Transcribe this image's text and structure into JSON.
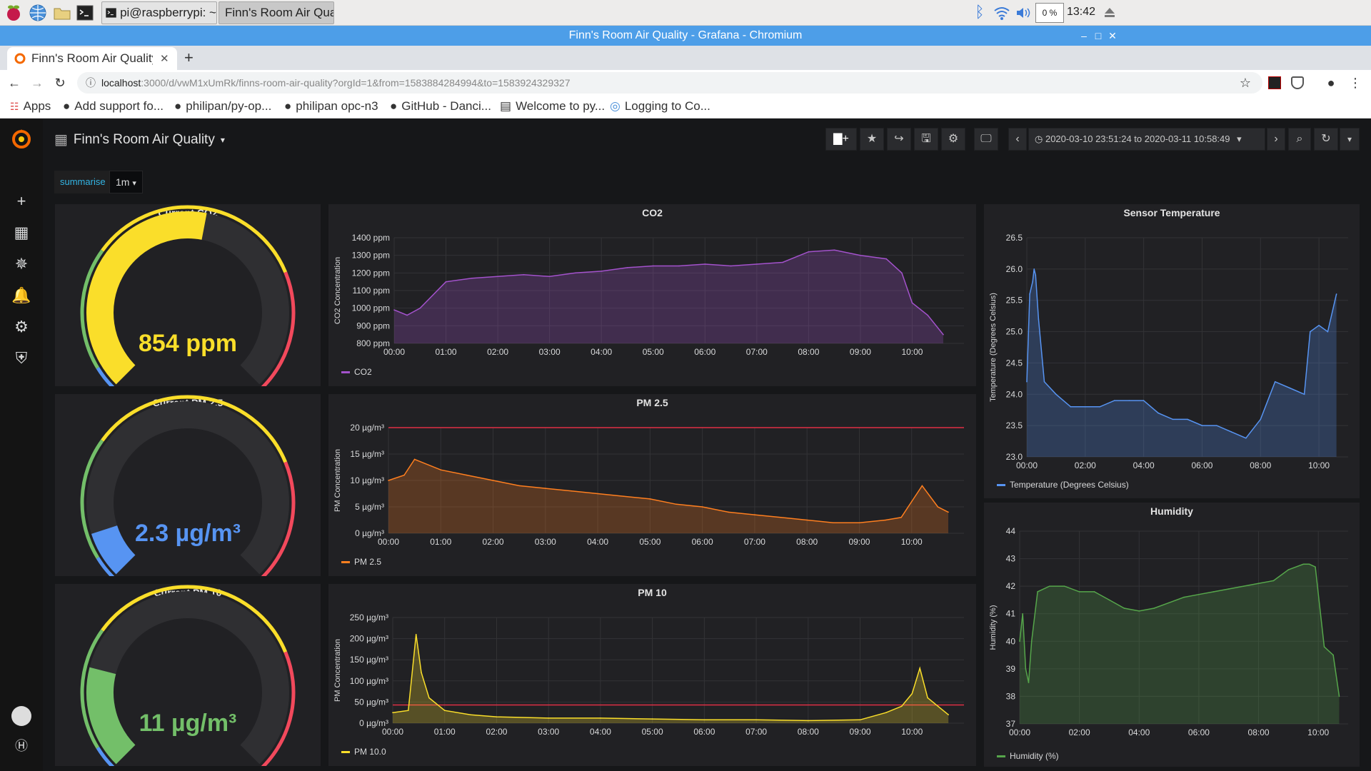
{
  "taskbar": {
    "windows": [
      {
        "label": "pi@raspberrypi: ~"
      },
      {
        "label": "Finn's Room Air Quali..."
      }
    ],
    "cpu": "0 %",
    "clock": "13:42"
  },
  "browser": {
    "window_title": "Finn's Room Air Quality - Grafana - Chromium",
    "tab_title": "Finn's Room Air Quality ·",
    "url_host": "localhost",
    "url_rest": ":3000/d/vwM1xUmRk/finns-room-air-quality?orgId=1&from=1583884284994&to=1583924329327",
    "bookmarks": [
      "Apps",
      "Add support fo...",
      "philipan/py-op...",
      "philipan opc-n3",
      "GitHub - Danci...",
      "Welcome to py...",
      "Logging to Co..."
    ]
  },
  "dashboard": {
    "title": "Finn's Room Air Quality",
    "time_range": "2020-03-10 23:51:24 to 2020-03-11 10:58:49",
    "variable_label": "summarise",
    "variable_value": "1m"
  },
  "gauges": [
    {
      "title": "Current CO2",
      "value_text": "854 ppm",
      "fraction": 0.54,
      "color": "#fade2a"
    },
    {
      "title": "Current PM 2.5",
      "value_text": "2.3 µg/m³",
      "fraction": 0.1,
      "color": "#5794f2"
    },
    {
      "title": "Current PM 10",
      "value_text": "11 µg/m³",
      "fraction": 0.22,
      "color": "#73bf69"
    }
  ],
  "charts": {
    "co2": {
      "title": "CO2",
      "ylabel": "CO2 Concentration",
      "legend": "CO2",
      "color": "#a352cc",
      "yticks": [
        "1400 ppm",
        "1300 ppm",
        "1200 ppm",
        "1100 ppm",
        "1000 ppm",
        "900 ppm",
        "800 ppm"
      ],
      "xticks": [
        "00:00",
        "01:00",
        "02:00",
        "03:00",
        "04:00",
        "05:00",
        "06:00",
        "07:00",
        "08:00",
        "09:00",
        "10:00"
      ]
    },
    "pm25": {
      "title": "PM 2.5",
      "ylabel": "PM Concentration",
      "legend": "PM 2.5",
      "color": "#ff7f1f",
      "yticks": [
        "20 µg/m³",
        "15 µg/m³",
        "10 µg/m³",
        "5 µg/m³",
        "0 µg/m³"
      ],
      "xticks": [
        "00:00",
        "01:00",
        "02:00",
        "03:00",
        "04:00",
        "05:00",
        "06:00",
        "07:00",
        "08:00",
        "09:00",
        "10:00"
      ]
    },
    "pm10": {
      "title": "PM 10",
      "ylabel": "PM Concentration",
      "legend": "PM 10.0",
      "color": "#fade2a",
      "yticks": [
        "250 µg/m³",
        "200 µg/m³",
        "150 µg/m³",
        "100 µg/m³",
        "50 µg/m³",
        "0 µg/m³"
      ],
      "xticks": [
        "00:00",
        "01:00",
        "02:00",
        "03:00",
        "04:00",
        "05:00",
        "06:00",
        "07:00",
        "08:00",
        "09:00",
        "10:00"
      ]
    },
    "temp": {
      "title": "Sensor Temperature",
      "ylabel": "Temperature (Degrees Celsius)",
      "legend": "Temperature (Degrees Celsius)",
      "color": "#5794f2",
      "yticks": [
        "26.5",
        "26.0",
        "25.5",
        "25.0",
        "24.5",
        "24.0",
        "23.5",
        "23.0"
      ],
      "xticks": [
        "00:00",
        "02:00",
        "04:00",
        "06:00",
        "08:00",
        "10:00"
      ]
    },
    "humidity": {
      "title": "Humidity",
      "ylabel": "Humidity (%)",
      "legend": "Humidity (%)",
      "color": "#56a64b",
      "yticks": [
        "44",
        "43",
        "42",
        "41",
        "40",
        "39",
        "38",
        "37"
      ],
      "xticks": [
        "00:00",
        "02:00",
        "04:00",
        "06:00",
        "08:00",
        "10:00"
      ]
    }
  },
  "chart_data": [
    {
      "type": "line",
      "title": "CO2",
      "ylabel": "CO2 Concentration",
      "ylim": [
        800,
        1400
      ],
      "x": [
        0,
        0.25,
        0.5,
        1,
        1.5,
        2,
        2.5,
        3,
        3.5,
        4,
        4.5,
        5,
        5.5,
        6,
        6.5,
        7,
        7.5,
        8,
        8.5,
        9,
        9.5,
        9.8,
        10,
        10.3,
        10.6
      ],
      "y": [
        990,
        960,
        1000,
        1150,
        1170,
        1180,
        1190,
        1180,
        1200,
        1210,
        1230,
        1240,
        1240,
        1250,
        1240,
        1250,
        1260,
        1320,
        1330,
        1300,
        1280,
        1200,
        1030,
        960,
        850
      ]
    },
    {
      "type": "line",
      "title": "PM 2.5",
      "ylabel": "PM Concentration",
      "ylim": [
        0,
        20
      ],
      "threshold": 20,
      "x": [
        0,
        0.3,
        0.5,
        1,
        1.5,
        2,
        2.5,
        3,
        3.5,
        4,
        4.5,
        5,
        5.5,
        6,
        6.5,
        7,
        7.5,
        8,
        8.5,
        9,
        9.5,
        9.8,
        10,
        10.2,
        10.5,
        10.7
      ],
      "y": [
        10,
        11,
        14,
        12,
        11,
        10,
        9,
        8.5,
        8,
        7.5,
        7,
        6.5,
        5.5,
        5,
        4,
        3.5,
        3,
        2.5,
        2,
        2,
        2.5,
        3,
        6,
        9,
        5,
        4
      ]
    },
    {
      "type": "line",
      "title": "PM 10",
      "ylabel": "PM Concentration",
      "ylim": [
        0,
        250
      ],
      "threshold": 43,
      "x": [
        0,
        0.3,
        0.45,
        0.55,
        0.7,
        1,
        1.5,
        2,
        3,
        4,
        5,
        6,
        7,
        8,
        9,
        9.5,
        9.8,
        10,
        10.15,
        10.3,
        10.5,
        10.7
      ],
      "y": [
        25,
        30,
        210,
        120,
        60,
        30,
        20,
        15,
        12,
        12,
        10,
        8,
        8,
        6,
        8,
        25,
        40,
        70,
        130,
        60,
        40,
        20
      ]
    },
    {
      "type": "line",
      "title": "Sensor Temperature",
      "ylabel": "Temperature (Degrees Celsius)",
      "ylim": [
        23,
        26.5
      ],
      "x": [
        0,
        0.1,
        0.2,
        0.25,
        0.3,
        0.4,
        0.6,
        1,
        1.5,
        2,
        2.5,
        3,
        3.5,
        4,
        4.5,
        5,
        5.5,
        6,
        6.5,
        7,
        7.5,
        8,
        8.5,
        9,
        9.5,
        9.7,
        10,
        10.3,
        10.6
      ],
      "y": [
        24.2,
        25.6,
        25.8,
        26.0,
        25.9,
        25.2,
        24.2,
        24.0,
        23.8,
        23.8,
        23.8,
        23.9,
        23.9,
        23.9,
        23.7,
        23.6,
        23.6,
        23.5,
        23.5,
        23.4,
        23.3,
        23.6,
        24.2,
        24.1,
        24.0,
        25.0,
        25.1,
        25.0,
        25.6
      ]
    },
    {
      "type": "area",
      "title": "Humidity",
      "ylabel": "Humidity (%)",
      "ylim": [
        37,
        44
      ],
      "x": [
        0,
        0.1,
        0.2,
        0.3,
        0.4,
        0.6,
        1,
        1.5,
        2,
        2.5,
        3,
        3.5,
        4,
        4.5,
        5,
        5.5,
        6,
        6.5,
        7,
        7.5,
        8,
        8.5,
        9,
        9.5,
        9.7,
        9.9,
        10.2,
        10.5,
        10.7
      ],
      "y": [
        40,
        41,
        39,
        38.5,
        40,
        41.8,
        42,
        42,
        41.8,
        41.8,
        41.5,
        41.2,
        41.1,
        41.2,
        41.4,
        41.6,
        41.7,
        41.8,
        41.9,
        42.0,
        42.1,
        42.2,
        42.6,
        42.8,
        42.8,
        42.7,
        39.8,
        39.5,
        38
      ]
    }
  ]
}
